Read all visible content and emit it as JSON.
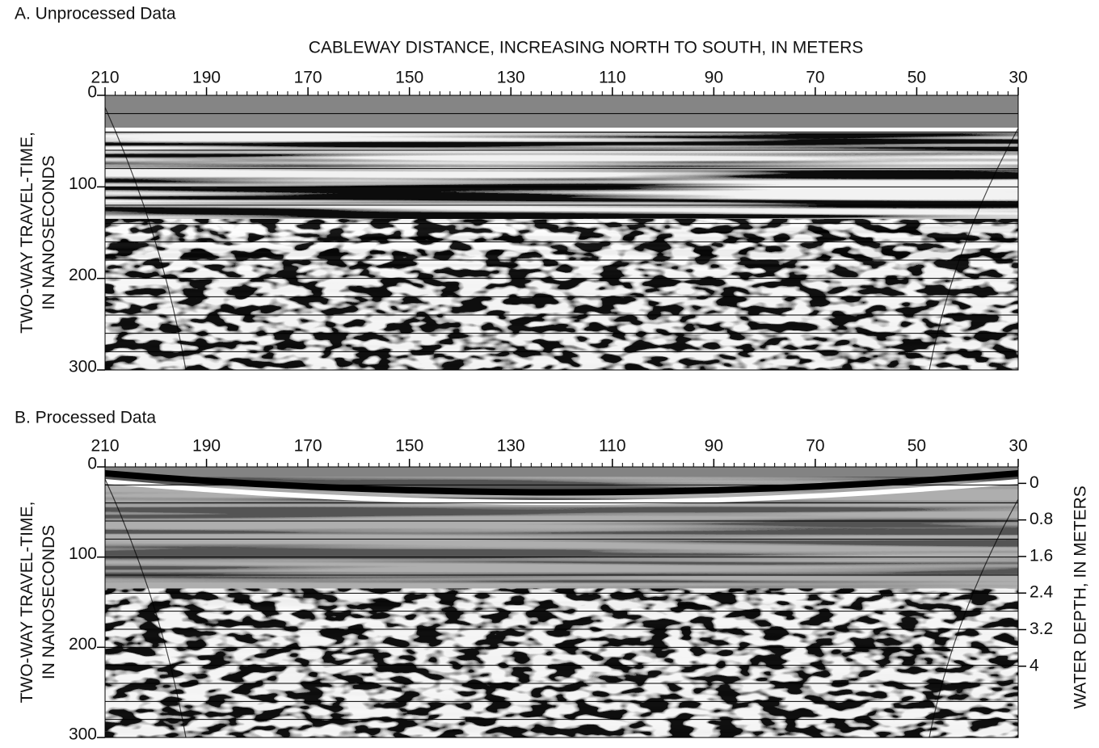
{
  "chart_data": [
    {
      "type": "radargram",
      "title": "A. Unprocessed Data",
      "xlabel": "CABLEWAY DISTANCE, INCREASING NORTH TO SOUTH, IN METERS",
      "ylabel": [
        "TWO-WAY TRAVEL-TIME,",
        "IN NANOSECONDS"
      ],
      "xlim": [
        210,
        30
      ],
      "xticks": [
        210,
        190,
        170,
        150,
        130,
        110,
        90,
        70,
        50,
        30
      ],
      "ylim": [
        0,
        300
      ],
      "yticks": [
        0,
        100,
        200,
        300
      ]
    },
    {
      "type": "radargram",
      "title": "B. Processed Data",
      "ylabel": [
        "TWO-WAY TRAVEL-TIME,",
        "IN NANOSECONDS"
      ],
      "y2label": "WATER DEPTH, IN METERS",
      "xlim": [
        210,
        30
      ],
      "xticks": [
        210,
        190,
        170,
        150,
        130,
        110,
        90,
        70,
        50,
        30
      ],
      "ylim": [
        0,
        300
      ],
      "yticks": [
        0,
        100,
        200,
        300
      ],
      "y2lim": [
        -0.36,
        5.56
      ],
      "y2ticks": [
        0,
        0.8,
        1.6,
        2.4,
        3.2,
        4
      ]
    }
  ]
}
